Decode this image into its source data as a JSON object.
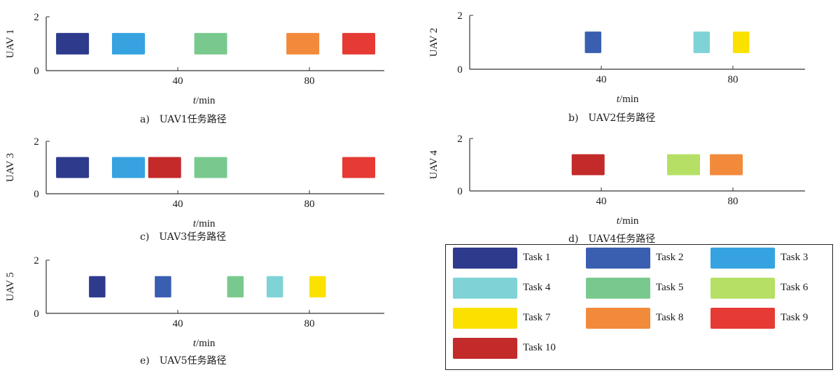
{
  "chart_data": [
    {
      "type": "gantt",
      "caption": "a)　UAV1任务路径",
      "ylabel": "UAV 1",
      "xlabel_italic": "t",
      "xlabel_rest": "/min",
      "xticks": [
        40,
        80
      ],
      "yticks": [
        0,
        2
      ],
      "xlim": [
        0,
        104
      ],
      "ylim": [
        0,
        2
      ],
      "tasks": [
        {
          "task": "Task 1",
          "start": 3,
          "end": 13
        },
        {
          "task": "Task 3",
          "start": 20,
          "end": 30
        },
        {
          "task": "Task 5",
          "start": 45,
          "end": 55
        },
        {
          "task": "Task 8",
          "start": 73,
          "end": 83
        },
        {
          "task": "Task 9",
          "start": 90,
          "end": 100
        }
      ]
    },
    {
      "type": "gantt",
      "caption": "b)　UAV2任务路径",
      "ylabel": "UAV 2",
      "xlabel_italic": "t",
      "xlabel_rest": "/min",
      "xticks": [
        40,
        80
      ],
      "yticks": [
        0,
        2
      ],
      "xlim": [
        0,
        104
      ],
      "ylim": [
        0,
        2
      ],
      "tasks": [
        {
          "task": "Task 2",
          "start": 35,
          "end": 40
        },
        {
          "task": "Task 4",
          "start": 68,
          "end": 73
        },
        {
          "task": "Task 7",
          "start": 80,
          "end": 85
        }
      ]
    },
    {
      "type": "gantt",
      "caption": "c)　UAV3任务路径",
      "ylabel": "UAV 3",
      "xlabel_italic": "t",
      "xlabel_rest": "/min",
      "xticks": [
        40,
        80
      ],
      "yticks": [
        0,
        2
      ],
      "xlim": [
        0,
        104
      ],
      "ylim": [
        0,
        2
      ],
      "tasks": [
        {
          "task": "Task 1",
          "start": 3,
          "end": 13
        },
        {
          "task": "Task 3",
          "start": 20,
          "end": 30
        },
        {
          "task": "Task 10",
          "start": 31,
          "end": 41
        },
        {
          "task": "Task 5",
          "start": 45,
          "end": 55
        },
        {
          "task": "Task 9",
          "start": 90,
          "end": 100
        }
      ]
    },
    {
      "type": "gantt",
      "caption": "d)　UAV4任务路径",
      "ylabel": "UAV 4",
      "xlabel_italic": "t",
      "xlabel_rest": "/min",
      "xticks": [
        40,
        80
      ],
      "yticks": [
        0,
        2
      ],
      "xlim": [
        0,
        104
      ],
      "ylim": [
        0,
        2
      ],
      "tasks": [
        {
          "task": "Task 10",
          "start": 31,
          "end": 41
        },
        {
          "task": "Task 6",
          "start": 60,
          "end": 70
        },
        {
          "task": "Task 8",
          "start": 73,
          "end": 83
        }
      ]
    },
    {
      "type": "gantt",
      "caption": "e)　UAV5任务路径",
      "ylabel": "UAV 5",
      "xlabel_italic": "t",
      "xlabel_rest": "/min",
      "xticks": [
        40,
        80
      ],
      "yticks": [
        0,
        2
      ],
      "xlim": [
        0,
        104
      ],
      "ylim": [
        0,
        2
      ],
      "tasks": [
        {
          "task": "Task 1",
          "start": 13,
          "end": 18
        },
        {
          "task": "Task 2",
          "start": 33,
          "end": 38
        },
        {
          "task": "Task 5",
          "start": 55,
          "end": 60
        },
        {
          "task": "Task 4",
          "start": 67,
          "end": 72
        },
        {
          "task": "Task 7",
          "start": 80,
          "end": 85
        }
      ]
    }
  ],
  "legend": {
    "items": [
      {
        "label": "Task 1",
        "color": "#2e3a8c"
      },
      {
        "label": "Task 2",
        "color": "#3a5fb0"
      },
      {
        "label": "Task 3",
        "color": "#36a3e0"
      },
      {
        "label": "Task 4",
        "color": "#7fd3d6"
      },
      {
        "label": "Task 5",
        "color": "#79c98f"
      },
      {
        "label": "Task 6",
        "color": "#b5e065"
      },
      {
        "label": "Task 7",
        "color": "#fbe100"
      },
      {
        "label": "Task 8",
        "color": "#f28a3c"
      },
      {
        "label": "Task 9",
        "color": "#e63a34"
      },
      {
        "label": "Task 10",
        "color": "#c32a2a"
      }
    ]
  }
}
